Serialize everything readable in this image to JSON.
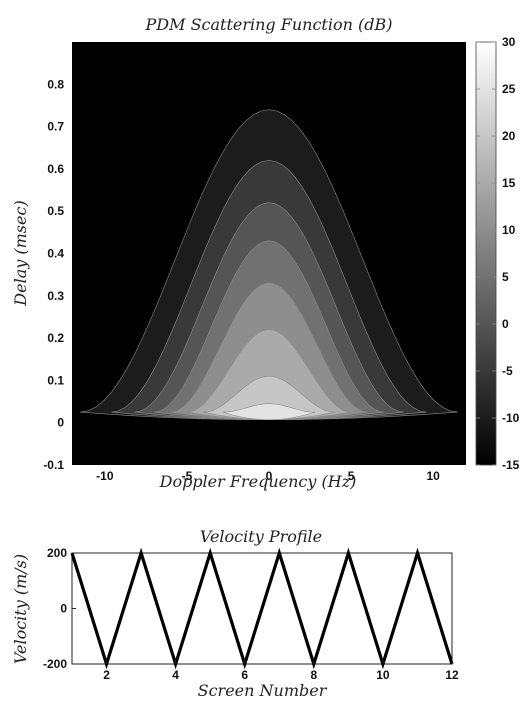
{
  "chart_data": [
    {
      "type": "heatmap",
      "title": "PDM Scattering Function (dB)",
      "xlabel": "Doppler Frequency (Hz)",
      "ylabel": "Delay (msec)",
      "xlim": [
        -12,
        12
      ],
      "ylim": [
        -0.1,
        0.9
      ],
      "x_ticks": [
        "-10",
        "-5",
        "0",
        "5",
        "10"
      ],
      "x_tick_values": [
        -10,
        -5,
        0,
        5,
        10
      ],
      "y_ticks": [
        "-0.1",
        "0",
        "0.1",
        "0.2",
        "0.3",
        "0.4",
        "0.5",
        "0.6",
        "0.7",
        "0.8"
      ],
      "y_tick_values": [
        -0.1,
        0,
        0.1,
        0.2,
        0.3,
        0.4,
        0.5,
        0.6,
        0.7,
        0.8
      ],
      "colorbar": {
        "range": [
          -15,
          30
        ],
        "ticks": [
          "30",
          "25",
          "20",
          "15",
          "10",
          "5",
          "0",
          "-5",
          "-10",
          "-15"
        ],
        "tick_values": [
          30,
          25,
          20,
          15,
          10,
          5,
          0,
          -5,
          -10,
          -15
        ],
        "colormap": "gray"
      },
      "contour_levels_db": [
        -10,
        -5,
        0,
        5,
        10,
        15,
        20,
        25
      ],
      "contour_extents": [
        {
          "db": -10,
          "delay_max": 0.74,
          "doppler_halfwidth": 11.5
        },
        {
          "db": -5,
          "delay_max": 0.62,
          "doppler_halfwidth": 9.6
        },
        {
          "db": 0,
          "delay_max": 0.52,
          "doppler_halfwidth": 8.2
        },
        {
          "db": 5,
          "delay_max": 0.43,
          "doppler_halfwidth": 7.0
        },
        {
          "db": 10,
          "delay_max": 0.33,
          "doppler_halfwidth": 6.0
        },
        {
          "db": 15,
          "delay_max": 0.22,
          "doppler_halfwidth": 5.0
        },
        {
          "db": 20,
          "delay_max": 0.11,
          "doppler_halfwidth": 4.0
        },
        {
          "db": 25,
          "delay_max": 0.045,
          "doppler_halfwidth": 2.8
        }
      ],
      "background_color": "#000000"
    },
    {
      "type": "line",
      "title": "Velocity Profile",
      "xlabel": "Screen Number",
      "ylabel": "Velocity (m/s)",
      "xlim": [
        1,
        12
      ],
      "ylim": [
        -200,
        200
      ],
      "x_ticks": [
        "2",
        "4",
        "6",
        "8",
        "10",
        "12"
      ],
      "x_tick_values": [
        2,
        4,
        6,
        8,
        10,
        12
      ],
      "y_ticks": [
        "200",
        "0",
        "-200"
      ],
      "y_tick_values": [
        200,
        0,
        -200
      ],
      "x": [
        1,
        2,
        3,
        4,
        5,
        6,
        7,
        8,
        9,
        10,
        11,
        12
      ],
      "values": [
        200,
        -200,
        200,
        -200,
        200,
        -200,
        200,
        -200,
        200,
        -200,
        200,
        -200
      ],
      "line_color": "#000000"
    }
  ]
}
